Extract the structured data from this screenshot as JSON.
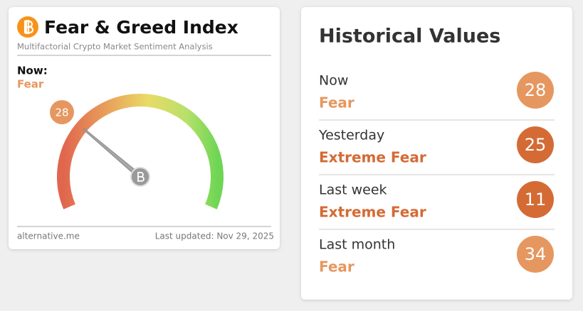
{
  "widget": {
    "title": "Fear & Greed Index",
    "subtitle": "Multifactorial Crypto Market Sentiment Analysis",
    "now_label": "Now:",
    "classification": "Fear",
    "value": 28,
    "range": [
      0,
      100
    ],
    "source": "alternative.me",
    "updated": "Last updated: Nov 29, 2025"
  },
  "history": {
    "title": "Historical Values",
    "rows": [
      {
        "label": "Now",
        "classification": "Fear",
        "value": 28,
        "color": "#e6975f"
      },
      {
        "label": "Yesterday",
        "classification": "Extreme Fear",
        "value": 25,
        "color": "#d46b35"
      },
      {
        "label": "Last week",
        "classification": "Extreme Fear",
        "value": 11,
        "color": "#d46b35"
      },
      {
        "label": "Last month",
        "classification": "Fear",
        "value": 34,
        "color": "#e6975f"
      }
    ]
  }
}
